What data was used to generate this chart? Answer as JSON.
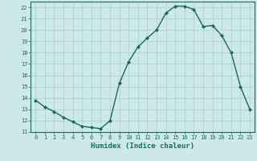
{
  "x": [
    0,
    1,
    2,
    3,
    4,
    5,
    6,
    7,
    8,
    9,
    10,
    11,
    12,
    13,
    14,
    15,
    16,
    17,
    18,
    19,
    20,
    21,
    22,
    23
  ],
  "y": [
    13.8,
    13.2,
    12.8,
    12.3,
    11.9,
    11.5,
    11.4,
    11.3,
    12.0,
    15.3,
    17.2,
    18.5,
    19.3,
    20.0,
    21.5,
    22.1,
    22.1,
    21.8,
    20.3,
    20.4,
    19.5,
    18.0,
    15.0,
    13.0
  ],
  "xlabel": "Humidex (Indice chaleur)",
  "ylim": [
    11,
    22.5
  ],
  "xlim": [
    -0.5,
    23.5
  ],
  "yticks": [
    11,
    12,
    13,
    14,
    15,
    16,
    17,
    18,
    19,
    20,
    21,
    22
  ],
  "xticks": [
    0,
    1,
    2,
    3,
    4,
    5,
    6,
    7,
    8,
    9,
    10,
    11,
    12,
    13,
    14,
    15,
    16,
    17,
    18,
    19,
    20,
    21,
    22,
    23
  ],
  "line_color": "#1a6b5a",
  "marker_color": "#1a6b5a",
  "bg_color": "#cce8e8",
  "grid_color": "#aacfcf",
  "axis_color": "#1a6b5a",
  "tick_label_color": "#1a6b5a",
  "xlabel_color": "#1a6b5a",
  "marker": "D",
  "markersize": 2.0,
  "linewidth": 1.0,
  "tick_fontsize": 5.0,
  "xlabel_fontsize": 6.5
}
